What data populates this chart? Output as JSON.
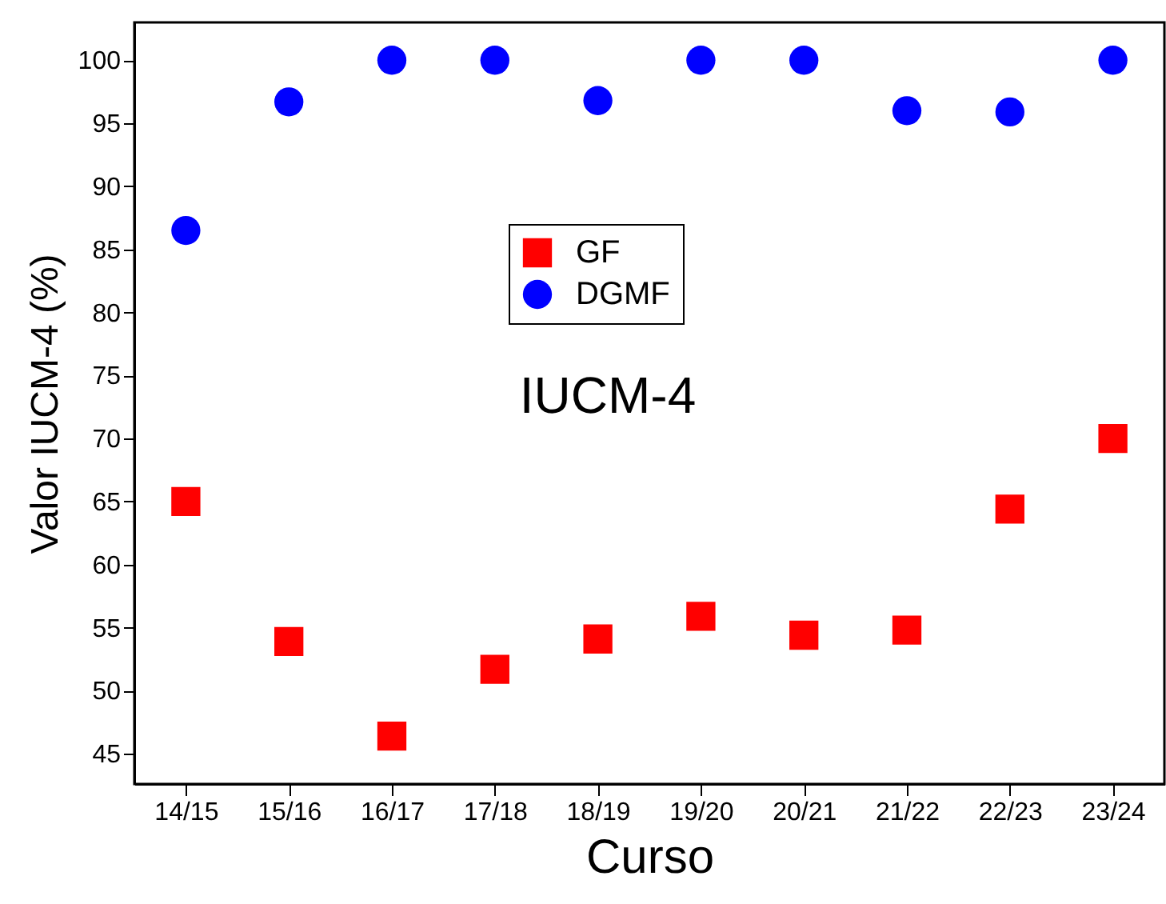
{
  "chart_data": {
    "type": "scatter",
    "xlabel": "Curso",
    "ylabel": "Valor IUCM-4 (%)",
    "categories": [
      "14/15",
      "15/16",
      "16/17",
      "17/18",
      "18/19",
      "19/20",
      "20/21",
      "21/22",
      "22/23",
      "23/24"
    ],
    "series": [
      {
        "name": "GF",
        "color": "#ff0000",
        "marker": "square",
        "values": [
          65,
          53.9,
          46.4,
          51.7,
          54.1,
          55.9,
          54.4,
          54.8,
          64.4,
          70
        ]
      },
      {
        "name": "DGMF",
        "color": "#0000ff",
        "marker": "circle",
        "values": [
          86.5,
          96.7,
          100,
          100,
          96.8,
          100,
          100,
          96,
          95.9,
          100
        ]
      }
    ],
    "ylim": [
      42.6,
      103
    ],
    "yticks": [
      45,
      50,
      55,
      60,
      65,
      70,
      75,
      80,
      85,
      90,
      95,
      100
    ],
    "annotations": [
      "IUCM-4"
    ],
    "legend": "top",
    "grid": false
  }
}
